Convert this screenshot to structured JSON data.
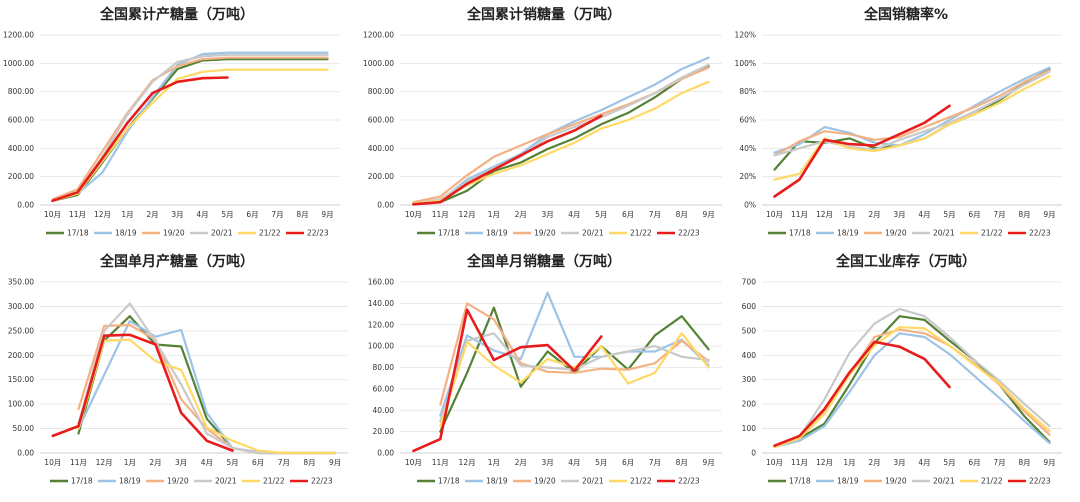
{
  "months": [
    "10月",
    "11月",
    "12月",
    "1月",
    "2月",
    "3月",
    "4月",
    "5月",
    "6月",
    "7月",
    "8月",
    "9月"
  ],
  "series_colors": {
    "17/18": "#548235",
    "18/19": "#9dc3e6",
    "19/20": "#f4b183",
    "20/21": "#c9c9c9",
    "21/22": "#ffd966",
    "22/23": "#e81c1c"
  },
  "chart_data": [
    {
      "type": "line",
      "title": "全国累计产糖量（万吨）",
      "ylim": [
        0,
        1200
      ],
      "yticks": [
        "0.00",
        "200.00",
        "400.00",
        "600.00",
        "800.00",
        "1000.00",
        "1200.00"
      ],
      "series": [
        {
          "name": "17/18",
          "values": [
            30,
            70,
            300,
            540,
            750,
            960,
            1020,
            1030,
            1030,
            1030,
            1030,
            1030
          ]
        },
        {
          "name": "18/19",
          "values": [
            30,
            80,
            230,
            520,
            760,
            990,
            1065,
            1075,
            1075,
            1075,
            1075,
            1075
          ]
        },
        {
          "name": "19/20",
          "values": [
            40,
            110,
            380,
            650,
            880,
            980,
            1030,
            1040,
            1040,
            1040,
            1040,
            1040
          ]
        },
        {
          "name": "20/21",
          "values": [
            30,
            90,
            340,
            640,
            870,
            1010,
            1050,
            1060,
            1060,
            1060,
            1060,
            1060
          ]
        },
        {
          "name": "21/22",
          "values": [
            30,
            80,
            310,
            540,
            720,
            890,
            940,
            955,
            955,
            955,
            955,
            955
          ]
        },
        {
          "name": "22/23",
          "values": [
            30,
            90,
            330,
            580,
            790,
            870,
            895,
            900
          ]
        }
      ]
    },
    {
      "type": "line",
      "title": "全国累计销糖量（万吨）",
      "ylim": [
        0,
        1200
      ],
      "yticks": [
        "0.00",
        "200.00",
        "400.00",
        "600.00",
        "800.00",
        "1000.00",
        "1200.00"
      ],
      "series": [
        {
          "name": "17/18",
          "values": [
            10,
            20,
            100,
            240,
            300,
            395,
            470,
            570,
            650,
            760,
            890,
            980
          ]
        },
        {
          "name": "18/19",
          "values": [
            10,
            30,
            180,
            270,
            360,
            500,
            590,
            670,
            760,
            850,
            960,
            1040
          ]
        },
        {
          "name": "19/20",
          "values": [
            20,
            60,
            210,
            340,
            420,
            500,
            570,
            640,
            710,
            790,
            890,
            970
          ]
        },
        {
          "name": "20/21",
          "values": [
            10,
            40,
            160,
            260,
            340,
            480,
            550,
            620,
            700,
            790,
            900,
            990
          ]
        },
        {
          "name": "21/22",
          "values": [
            10,
            30,
            140,
            220,
            280,
            360,
            440,
            540,
            600,
            680,
            790,
            870
          ]
        },
        {
          "name": "22/23",
          "values": [
            5,
            20,
            150,
            250,
            350,
            450,
            525,
            630
          ]
        }
      ]
    },
    {
      "type": "line",
      "title": "全国销糖率%",
      "ylim": [
        0,
        120
      ],
      "yticks": [
        "0%",
        "20%",
        "40%",
        "60%",
        "80%",
        "100%",
        "120%"
      ],
      "series": [
        {
          "name": "17/18",
          "values": [
            25,
            45,
            44,
            47,
            40,
            42,
            47,
            57,
            64,
            74,
            86,
            96
          ]
        },
        {
          "name": "18/19",
          "values": [
            37,
            43,
            55,
            51,
            44,
            42,
            50,
            60,
            70,
            80,
            89,
            97
          ]
        },
        {
          "name": "19/20",
          "values": [
            35,
            45,
            52,
            50,
            46,
            48,
            55,
            62,
            69,
            77,
            87,
            95
          ]
        },
        {
          "name": "20/21",
          "values": [
            35,
            40,
            45,
            41,
            39,
            46,
            52,
            58,
            66,
            75,
            85,
            94
          ]
        },
        {
          "name": "21/22",
          "values": [
            18,
            22,
            47,
            40,
            38,
            42,
            47,
            57,
            64,
            72,
            82,
            91
          ]
        },
        {
          "name": "22/23",
          "values": [
            6,
            18,
            46,
            43,
            42,
            50,
            58,
            70
          ]
        }
      ]
    },
    {
      "type": "line",
      "title": "全国单月产糖量（万吨）",
      "ylim": [
        0,
        350
      ],
      "yticks": [
        "0.00",
        "50.00",
        "100.00",
        "150.00",
        "200.00",
        "250.00",
        "300.00",
        "350.00"
      ],
      "series": [
        {
          "name": "17/18",
          "values": [
            null,
            40,
            230,
            280,
            222,
            218,
            70,
            10,
            0,
            0,
            0,
            0
          ]
        },
        {
          "name": "18/19",
          "values": [
            null,
            50,
            160,
            270,
            238,
            252,
            82,
            10,
            2,
            0,
            0,
            0
          ]
        },
        {
          "name": "19/20",
          "values": [
            null,
            90,
            260,
            262,
            232,
            110,
            50,
            10,
            0,
            0,
            0,
            0
          ]
        },
        {
          "name": "20/21",
          "values": [
            null,
            60,
            250,
            306,
            228,
            140,
            40,
            10,
            0,
            0,
            0,
            0
          ]
        },
        {
          "name": "21/22",
          "values": [
            null,
            50,
            230,
            232,
            188,
            170,
            52,
            25,
            5,
            0,
            0,
            0
          ]
        },
        {
          "name": "22/23",
          "values": [
            35,
            55,
            240,
            242,
            222,
            82,
            25,
            5
          ]
        }
      ]
    },
    {
      "type": "line",
      "title": "全国单月销糖量（万吨）",
      "ylim": [
        0,
        160
      ],
      "yticks": [
        "0.00",
        "20.00",
        "40.00",
        "60.00",
        "80.00",
        "100.00",
        "120.00",
        "140.00",
        "160.00"
      ],
      "series": [
        {
          "name": "17/18",
          "values": [
            null,
            20,
            75,
            136,
            62,
            95,
            75,
            100,
            78,
            110,
            128,
            97
          ]
        },
        {
          "name": "18/19",
          "values": [
            null,
            35,
            110,
            96,
            88,
            150,
            90,
            90,
            95,
            95,
            106,
            82
          ]
        },
        {
          "name": "19/20",
          "values": [
            null,
            45,
            140,
            125,
            84,
            76,
            75,
            79,
            78,
            84,
            105,
            86
          ]
        },
        {
          "name": "20/21",
          "values": [
            null,
            30,
            105,
            112,
            82,
            80,
            78,
            90,
            95,
            100,
            90,
            87
          ]
        },
        {
          "name": "21/22",
          "values": [
            null,
            25,
            104,
            82,
            66,
            88,
            80,
            100,
            65,
            75,
            112,
            80
          ]
        },
        {
          "name": "22/23",
          "values": [
            2,
            13,
            134,
            87,
            99,
            101,
            77,
            109
          ]
        }
      ]
    },
    {
      "type": "line",
      "title": "全国工业库存（万吨）",
      "ylim": [
        0,
        700
      ],
      "yticks": [
        "0",
        "100",
        "200",
        "300",
        "400",
        "500",
        "600",
        "700"
      ],
      "series": [
        {
          "name": "17/18",
          "values": [
            25,
            60,
            120,
            280,
            450,
            560,
            545,
            460,
            380,
            280,
            150,
            45
          ]
        },
        {
          "name": "18/19",
          "values": [
            25,
            50,
            110,
            250,
            400,
            490,
            475,
            405,
            315,
            225,
            130,
            40
          ]
        },
        {
          "name": "19/20",
          "values": [
            25,
            60,
            170,
            320,
            475,
            505,
            490,
            440,
            365,
            280,
            170,
            75
          ]
        },
        {
          "name": "20/21",
          "values": [
            25,
            65,
            220,
            410,
            530,
            590,
            560,
            475,
            380,
            295,
            200,
            110
          ]
        },
        {
          "name": "21/22",
          "values": [
            25,
            60,
            160,
            320,
            440,
            515,
            510,
            440,
            360,
            285,
            180,
            90
          ]
        },
        {
          "name": "22/23",
          "values": [
            30,
            70,
            180,
            330,
            455,
            435,
            385,
            270
          ]
        }
      ]
    }
  ]
}
